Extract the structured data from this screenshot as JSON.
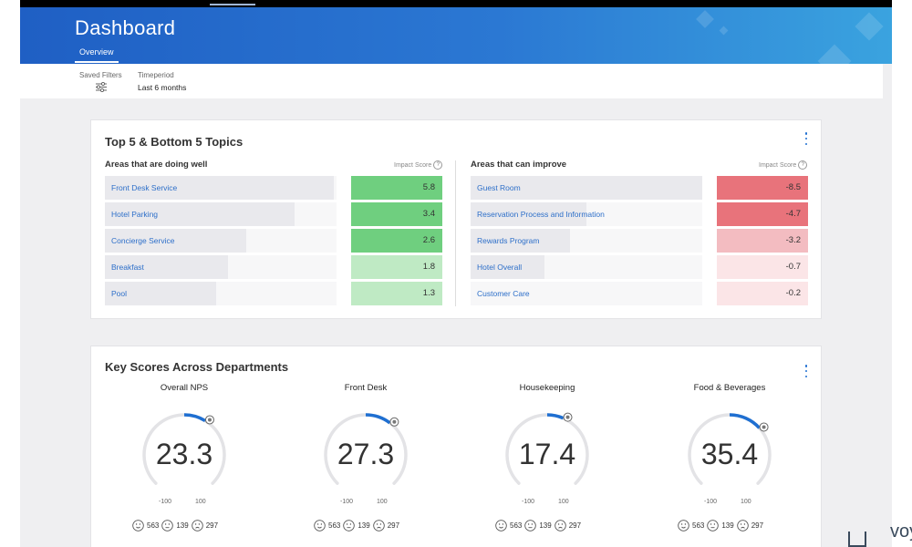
{
  "header": {
    "title": "Dashboard",
    "tab": "Overview",
    "saved_filters_label": "Saved Filters",
    "timeperiod_label": "Timeperiod",
    "timeperiod_value": "Last 6 months",
    "brand_partial": "voy"
  },
  "topics": {
    "title": "Top 5 & Bottom 5 Topics",
    "impact_label": "Impact Score",
    "well": {
      "title": "Areas that are doing well",
      "items": [
        {
          "label": "Front Desk Service",
          "score": "5.8",
          "bar": 0.99,
          "color": "#6fcf7f"
        },
        {
          "label": "Hotel Parking",
          "score": "3.4",
          "bar": 0.82,
          "color": "#6fcf7f"
        },
        {
          "label": "Concierge Service",
          "score": "2.6",
          "bar": 0.61,
          "color": "#6fcf7f"
        },
        {
          "label": "Breakfast",
          "score": "1.8",
          "bar": 0.53,
          "color": "#bfeac4"
        },
        {
          "label": "Pool",
          "score": "1.3",
          "bar": 0.48,
          "color": "#bfeac4"
        }
      ]
    },
    "improve": {
      "title": "Areas that can improve",
      "items": [
        {
          "label": "Guest Room",
          "score": "-8.5",
          "bar": 1.0,
          "color": "#e8737b"
        },
        {
          "label": "Reservation Process and Information",
          "score": "-4.7",
          "bar": 0.5,
          "color": "#e8737b"
        },
        {
          "label": "Rewards Program",
          "score": "-3.2",
          "bar": 0.43,
          "color": "#f3bcc1"
        },
        {
          "label": "Hotel Overall",
          "score": "-0.7",
          "bar": 0.32,
          "color": "#fbe5e7"
        },
        {
          "label": "Customer Care",
          "score": "-0.2",
          "bar": 0.0,
          "color": "#fbe5e7"
        }
      ]
    }
  },
  "departments": {
    "title": "Key Scores Across Departments",
    "items": [
      {
        "name": "Overall NPS",
        "value": "23.3",
        "min": "-100",
        "max": "100",
        "happy": "563",
        "neutral": "139",
        "sad": "297"
      },
      {
        "name": "Front Desk",
        "value": "27.3",
        "min": "-100",
        "max": "100",
        "happy": "563",
        "neutral": "139",
        "sad": "297"
      },
      {
        "name": "Housekeeping",
        "value": "17.4",
        "min": "-100",
        "max": "100",
        "happy": "563",
        "neutral": "139",
        "sad": "297"
      },
      {
        "name": "Food & Beverages",
        "value": "35.4",
        "min": "-100",
        "max": "100",
        "happy": "563",
        "neutral": "139",
        "sad": "297"
      }
    ]
  },
  "colors": {
    "accent": "#1f6fd1",
    "gauge_track": "#e3e3e6",
    "positive": "#6fcf7f",
    "negative": "#e8737b"
  }
}
